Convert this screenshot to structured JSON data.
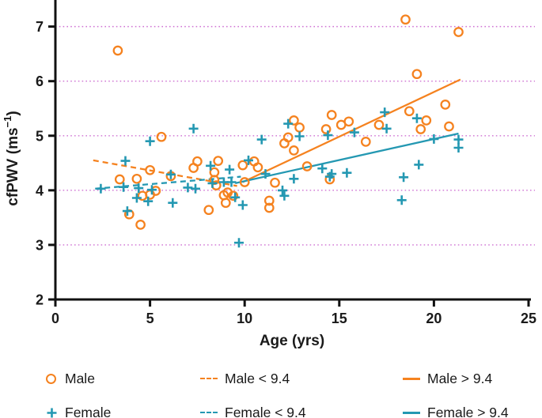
{
  "chart_data": {
    "type": "scatter",
    "title": "",
    "xlabel": "Age (yrs)",
    "ylabel": "cfPWV (ms⁻¹)",
    "xlim": [
      0,
      25
    ],
    "ylim": [
      2,
      7.4
    ],
    "xticks": [
      0,
      5,
      10,
      15,
      20,
      25
    ],
    "yticks": [
      2,
      3,
      4,
      5,
      6,
      7
    ],
    "gridlines_y": [
      3,
      4,
      5,
      6,
      7
    ],
    "grid_color": "#cf72d3",
    "axis_color": "#111111",
    "legend_position": "bottom",
    "series": [
      {
        "name": "Male",
        "marker": "circle",
        "color": "#f5821f",
        "points": [
          [
            3.3,
            6.56
          ],
          [
            18.5,
            7.13
          ],
          [
            21.3,
            6.9
          ],
          [
            19.1,
            6.13
          ],
          [
            3.4,
            4.2
          ],
          [
            4.3,
            4.21
          ],
          [
            5.0,
            4.37
          ],
          [
            5.6,
            4.98
          ],
          [
            6.1,
            4.26
          ],
          [
            7.3,
            4.41
          ],
          [
            7.5,
            4.53
          ],
          [
            8.6,
            4.54
          ],
          [
            8.4,
            4.33
          ],
          [
            8.4,
            4.19
          ],
          [
            4.6,
            3.9
          ],
          [
            5.0,
            3.92
          ],
          [
            5.3,
            3.99
          ],
          [
            3.9,
            3.56
          ],
          [
            4.5,
            3.37
          ],
          [
            8.1,
            3.64
          ],
          [
            8.5,
            4.09
          ],
          [
            8.9,
            3.91
          ],
          [
            9.1,
            3.96
          ],
          [
            9.4,
            3.9
          ],
          [
            9.0,
            3.77
          ],
          [
            9.9,
            4.46
          ],
          [
            10.5,
            4.53
          ],
          [
            10.7,
            4.42
          ],
          [
            10.0,
            4.15
          ],
          [
            11.6,
            4.14
          ],
          [
            11.3,
            3.81
          ],
          [
            11.3,
            3.68
          ],
          [
            12.3,
            4.97
          ],
          [
            12.1,
            4.86
          ],
          [
            12.6,
            4.73
          ],
          [
            12.6,
            5.28
          ],
          [
            12.9,
            5.15
          ],
          [
            13.3,
            4.44
          ],
          [
            14.3,
            5.12
          ],
          [
            14.6,
            5.38
          ],
          [
            15.1,
            5.2
          ],
          [
            15.5,
            5.26
          ],
          [
            14.5,
            4.2
          ],
          [
            16.4,
            4.89
          ],
          [
            17.1,
            5.2
          ],
          [
            18.7,
            5.45
          ],
          [
            19.3,
            5.12
          ],
          [
            19.6,
            5.28
          ],
          [
            20.6,
            5.57
          ],
          [
            20.8,
            5.17
          ]
        ]
      },
      {
        "name": "Female",
        "marker": "plus",
        "color": "#2498b2",
        "points": [
          [
            2.4,
            4.03
          ],
          [
            3.6,
            4.06
          ],
          [
            4.4,
            4.04
          ],
          [
            3.7,
            4.54
          ],
          [
            5.0,
            4.9
          ],
          [
            7.3,
            5.13
          ],
          [
            5.1,
            4.01
          ],
          [
            4.3,
            3.86
          ],
          [
            4.9,
            3.8
          ],
          [
            6.2,
            3.77
          ],
          [
            3.8,
            3.62
          ],
          [
            6.1,
            4.29
          ],
          [
            7.0,
            4.05
          ],
          [
            7.4,
            4.03
          ],
          [
            8.2,
            4.45
          ],
          [
            8.3,
            4.13
          ],
          [
            8.9,
            4.15
          ],
          [
            9.2,
            4.38
          ],
          [
            9.3,
            4.15
          ],
          [
            9.5,
            3.87
          ],
          [
            9.9,
            3.73
          ],
          [
            9.7,
            3.04
          ],
          [
            10.2,
            4.55
          ],
          [
            10.9,
            4.93
          ],
          [
            11.1,
            4.3
          ],
          [
            12.0,
            4.0
          ],
          [
            12.1,
            3.9
          ],
          [
            12.3,
            5.22
          ],
          [
            12.6,
            4.21
          ],
          [
            12.9,
            4.99
          ],
          [
            14.4,
            5.01
          ],
          [
            14.1,
            4.4
          ],
          [
            14.6,
            4.3
          ],
          [
            14.5,
            4.25
          ],
          [
            15.4,
            4.32
          ],
          [
            15.8,
            5.06
          ],
          [
            17.4,
            5.43
          ],
          [
            17.5,
            5.13
          ],
          [
            19.1,
            5.32
          ],
          [
            18.4,
            4.24
          ],
          [
            19.2,
            4.47
          ],
          [
            18.3,
            3.82
          ],
          [
            20.0,
            4.94
          ],
          [
            21.3,
            4.93
          ],
          [
            21.3,
            4.78
          ]
        ]
      }
    ],
    "trendlines": [
      {
        "name": "Male < 9.4",
        "color": "#f5821f",
        "style": "dashed",
        "x1": 2.0,
        "y1": 4.55,
        "x2": 9.6,
        "y2": 4.08
      },
      {
        "name": "Female < 9.4",
        "color": "#2498b2",
        "style": "dashed",
        "x1": 2.1,
        "y1": 4.03,
        "x2": 9.8,
        "y2": 4.25
      },
      {
        "name": "Male > 9.4",
        "color": "#f5821f",
        "style": "solid",
        "x1": 9.9,
        "y1": 4.15,
        "x2": 21.4,
        "y2": 6.03
      },
      {
        "name": "Female > 9.4",
        "color": "#2498b2",
        "style": "solid",
        "x1": 9.5,
        "y1": 4.13,
        "x2": 21.3,
        "y2": 5.04
      }
    ]
  },
  "legend": {
    "items": [
      {
        "label": "Male",
        "marker": "circle",
        "color": "#f5821f"
      },
      {
        "label": "Male < 9.4",
        "marker": "dashed-line",
        "color": "#f5821f"
      },
      {
        "label": "Male > 9.4",
        "marker": "solid-line",
        "color": "#f5821f"
      },
      {
        "label": "Female",
        "marker": "plus",
        "color": "#2498b2"
      },
      {
        "label": "Female < 9.4",
        "marker": "dashed-line",
        "color": "#2498b2"
      },
      {
        "label": "Female > 9.4",
        "marker": "solid-line",
        "color": "#2498b2"
      }
    ]
  }
}
